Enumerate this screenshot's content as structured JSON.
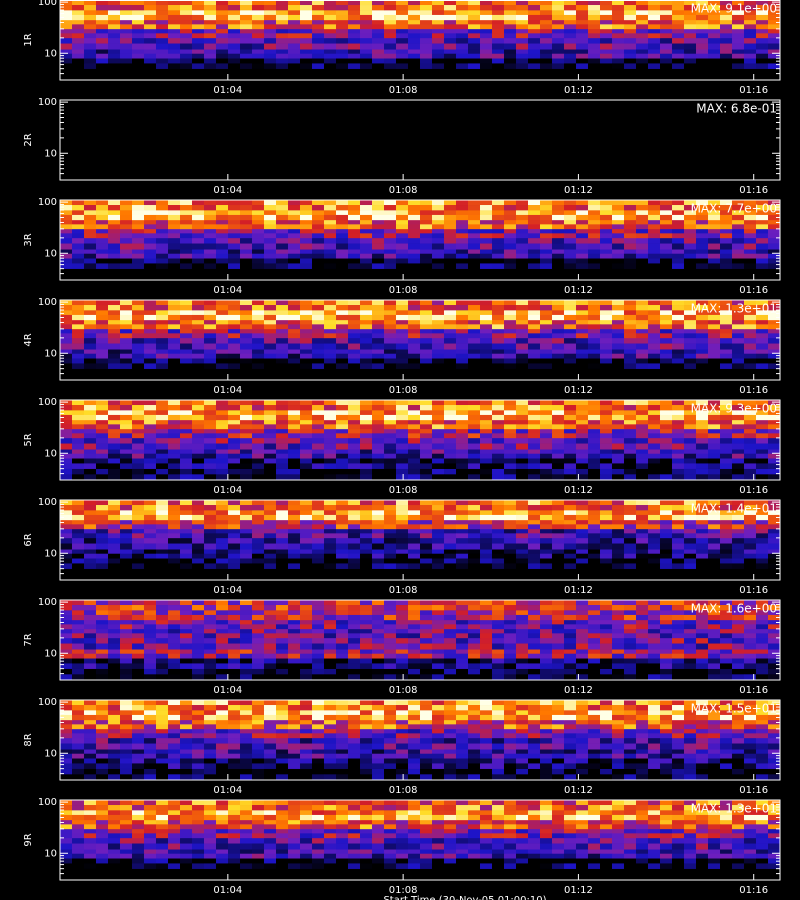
{
  "chart_data": [
    {
      "type": "heatmap",
      "ylabel": "1R",
      "annotation": "MAX: 9.1e+00",
      "log_y": true,
      "ylim": [
        3,
        110
      ],
      "yticks": [
        10,
        100
      ],
      "yminor_ticks": [
        4,
        5,
        6,
        7,
        8,
        9,
        20,
        30,
        40,
        50,
        60,
        70,
        80,
        90
      ],
      "xlim": [
        60.17,
        76.6
      ],
      "xticks": [
        {
          "value": 64,
          "label": "01:04"
        },
        {
          "value": 68,
          "label": "01:08"
        },
        {
          "value": 72,
          "label": "01:12"
        },
        {
          "value": 76,
          "label": "01:16"
        }
      ],
      "bins": [
        3,
        5,
        8,
        12,
        20,
        30,
        45,
        70,
        110
      ],
      "intensity": [
        0,
        0.03,
        0.3,
        0.35,
        0.45,
        0.7,
        0.85,
        0.75
      ]
    },
    {
      "type": "heatmap",
      "ylabel": "2R",
      "annotation": "MAX: 6.8e-01",
      "log_y": true,
      "ylim": [
        3,
        110
      ],
      "yticks": [
        10,
        100
      ],
      "yminor_ticks": [
        4,
        5,
        6,
        7,
        8,
        9,
        20,
        30,
        40,
        50,
        60,
        70,
        80,
        90
      ],
      "xlim": [
        60.17,
        76.6
      ],
      "xticks": [
        {
          "value": 64,
          "label": "01:04"
        },
        {
          "value": 68,
          "label": "01:08"
        },
        {
          "value": 72,
          "label": "01:12"
        },
        {
          "value": 76,
          "label": "01:16"
        }
      ],
      "bins": [
        3,
        5,
        8,
        12,
        20,
        30,
        45,
        70,
        110
      ],
      "intensity": [
        0,
        0,
        0,
        0,
        0,
        0,
        0,
        0
      ]
    },
    {
      "type": "heatmap",
      "ylabel": "3R",
      "annotation": "MAX: 7.7e+00",
      "log_y": true,
      "ylim": [
        3,
        110
      ],
      "yticks": [
        10,
        100
      ],
      "yminor_ticks": [
        4,
        5,
        6,
        7,
        8,
        9,
        20,
        30,
        40,
        50,
        60,
        70,
        80,
        90
      ],
      "xlim": [
        60.17,
        76.6
      ],
      "xticks": [
        {
          "value": 64,
          "label": "01:04"
        },
        {
          "value": 68,
          "label": "01:08"
        },
        {
          "value": 72,
          "label": "01:12"
        },
        {
          "value": 76,
          "label": "01:16"
        }
      ],
      "bins": [
        3,
        5,
        8,
        12,
        20,
        30,
        45,
        70,
        110
      ],
      "intensity": [
        0,
        0.03,
        0.3,
        0.35,
        0.45,
        0.7,
        0.85,
        0.78
      ]
    },
    {
      "type": "heatmap",
      "ylabel": "4R",
      "annotation": "MAX: 1.3e+01",
      "log_y": true,
      "ylim": [
        3,
        110
      ],
      "yticks": [
        10,
        100
      ],
      "yminor_ticks": [
        4,
        5,
        6,
        7,
        8,
        9,
        20,
        30,
        40,
        50,
        60,
        70,
        80,
        90
      ],
      "xlim": [
        60.17,
        76.6
      ],
      "xticks": [
        {
          "value": 64,
          "label": "01:04"
        },
        {
          "value": 68,
          "label": "01:08"
        },
        {
          "value": 72,
          "label": "01:12"
        },
        {
          "value": 76,
          "label": "01:16"
        }
      ],
      "bins": [
        3,
        5,
        8,
        12,
        20,
        30,
        45,
        70,
        110
      ],
      "intensity": [
        0,
        0.02,
        0.28,
        0.35,
        0.45,
        0.72,
        0.85,
        0.72
      ]
    },
    {
      "type": "heatmap",
      "ylabel": "5R",
      "annotation": "MAX: 9.3e+00",
      "log_y": true,
      "ylim": [
        3,
        110
      ],
      "yticks": [
        10,
        100
      ],
      "yminor_ticks": [
        4,
        5,
        6,
        7,
        8,
        9,
        20,
        30,
        40,
        50,
        60,
        70,
        80,
        90
      ],
      "xlim": [
        60.17,
        76.6
      ],
      "xticks": [
        {
          "value": 64,
          "label": "01:04"
        },
        {
          "value": 68,
          "label": "01:08"
        },
        {
          "value": 72,
          "label": "01:12"
        },
        {
          "value": 76,
          "label": "01:16"
        }
      ],
      "bins": [
        3,
        5,
        8,
        12,
        20,
        30,
        45,
        70,
        110
      ],
      "intensity": [
        0.05,
        0.12,
        0.3,
        0.38,
        0.5,
        0.72,
        0.85,
        0.75
      ]
    },
    {
      "type": "heatmap",
      "ylabel": "6R",
      "annotation": "MAX: 1.4e+01",
      "log_y": true,
      "ylim": [
        3,
        110
      ],
      "yticks": [
        10,
        100
      ],
      "yminor_ticks": [
        4,
        5,
        6,
        7,
        8,
        9,
        20,
        30,
        40,
        50,
        60,
        70,
        80,
        90
      ],
      "xlim": [
        60.17,
        76.6
      ],
      "xticks": [
        {
          "value": 64,
          "label": "01:04"
        },
        {
          "value": 68,
          "label": "01:08"
        },
        {
          "value": 72,
          "label": "01:12"
        },
        {
          "value": 76,
          "label": "01:16"
        }
      ],
      "bins": [
        3,
        5,
        8,
        12,
        20,
        30,
        45,
        70,
        110
      ],
      "intensity": [
        0,
        0.02,
        0.15,
        0.25,
        0.32,
        0.6,
        0.85,
        0.75
      ]
    },
    {
      "type": "heatmap",
      "ylabel": "7R",
      "annotation": "MAX: 1.6e+00",
      "log_y": true,
      "ylim": [
        3,
        110
      ],
      "yticks": [
        10,
        100
      ],
      "yminor_ticks": [
        4,
        5,
        6,
        7,
        8,
        9,
        20,
        30,
        40,
        50,
        60,
        70,
        80,
        90
      ],
      "xlim": [
        60.17,
        76.6
      ],
      "xticks": [
        {
          "value": 64,
          "label": "01:04"
        },
        {
          "value": 68,
          "label": "01:08"
        },
        {
          "value": 72,
          "label": "01:12"
        },
        {
          "value": 76,
          "label": "01:16"
        }
      ],
      "bins": [
        3,
        5,
        8,
        12,
        20,
        30,
        45,
        70,
        110
      ],
      "intensity": [
        0.02,
        0.15,
        0.5,
        0.4,
        0.38,
        0.42,
        0.55,
        0.6
      ]
    },
    {
      "type": "heatmap",
      "ylabel": "8R",
      "annotation": "MAX: 1.5e+01",
      "log_y": true,
      "ylim": [
        3,
        110
      ],
      "yticks": [
        10,
        100
      ],
      "yminor_ticks": [
        4,
        5,
        6,
        7,
        8,
        9,
        20,
        30,
        40,
        50,
        60,
        70,
        80,
        90
      ],
      "xlim": [
        60.17,
        76.6
      ],
      "xticks": [
        {
          "value": 64,
          "label": "01:04"
        },
        {
          "value": 68,
          "label": "01:08"
        },
        {
          "value": 72,
          "label": "01:12"
        },
        {
          "value": 76,
          "label": "01:16"
        }
      ],
      "bins": [
        3,
        5,
        8,
        12,
        20,
        30,
        45,
        70,
        110
      ],
      "intensity": [
        0.02,
        0.15,
        0.28,
        0.32,
        0.42,
        0.68,
        0.85,
        0.78
      ]
    },
    {
      "type": "heatmap",
      "ylabel": "9R",
      "annotation": "MAX: 1.3e+01",
      "log_y": true,
      "ylim": [
        3,
        110
      ],
      "yticks": [
        10,
        100
      ],
      "yminor_ticks": [
        4,
        5,
        6,
        7,
        8,
        9,
        20,
        30,
        40,
        50,
        60,
        70,
        80,
        90
      ],
      "xlim": [
        60.17,
        76.6
      ],
      "xticks": [
        {
          "value": 64,
          "label": "01:04"
        },
        {
          "value": 68,
          "label": "01:08"
        },
        {
          "value": 72,
          "label": "01:12"
        },
        {
          "value": 76,
          "label": "01:16"
        }
      ],
      "bins": [
        3,
        5,
        8,
        12,
        20,
        30,
        45,
        70,
        110
      ],
      "intensity": [
        0,
        0.03,
        0.3,
        0.35,
        0.45,
        0.68,
        0.82,
        0.72
      ],
      "xlabel": "Start Time (30-Nov-05 01:00:10)"
    }
  ]
}
